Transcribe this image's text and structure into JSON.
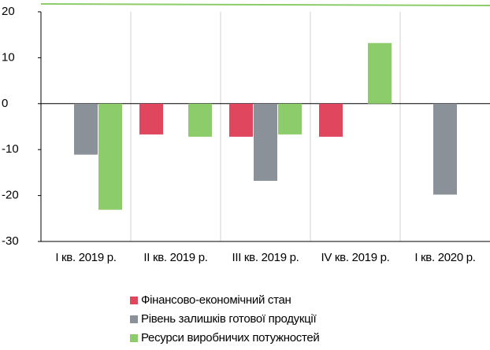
{
  "chart_data": {
    "type": "bar",
    "categories": [
      "I кв. 2019 р.",
      "II кв. 2019 р.",
      "III кв. 2019 р.",
      "IV кв. 2019 р.",
      "I кв. 2020 р."
    ],
    "series": [
      {
        "name": "Фінансово-економічний стан",
        "color": "#e0475e",
        "values": [
          null,
          -6.7,
          -7.2,
          -7.2,
          null
        ]
      },
      {
        "name": "Рівень залишків готової продукції",
        "color": "#8a9199",
        "values": [
          -11.1,
          null,
          -16.8,
          null,
          -19.8
        ]
      },
      {
        "name": "Ресурси виробничих потужностей",
        "color": "#8dcc6a",
        "values": [
          -23.1,
          -7.2,
          -6.7,
          13.2,
          null
        ]
      }
    ],
    "ylim": [
      -30,
      20
    ],
    "yticks": [
      -30,
      -20,
      -10,
      0,
      10,
      20
    ]
  }
}
